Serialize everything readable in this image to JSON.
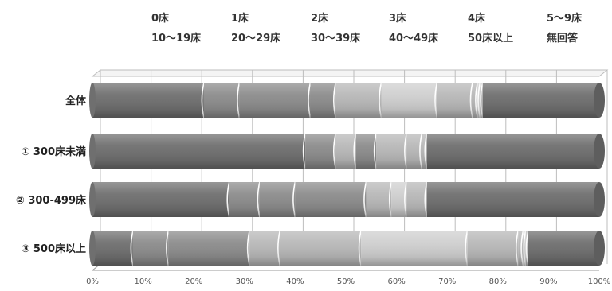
{
  "chart_data": {
    "type": "bar",
    "orientation": "horizontal",
    "stacked": true,
    "percent": true,
    "legend": {
      "row1": [
        "0床",
        "1床",
        "2床",
        "3床",
        "4床",
        "5～9床"
      ],
      "row2": [
        "10～19床",
        "20～29床",
        "30～39床",
        "40～49床",
        "50床以上",
        "無回答"
      ]
    },
    "categories": [
      "全体",
      "① 300床未満",
      "② 300-499床",
      "③ 500床以上"
    ],
    "series": [
      {
        "name": "0床",
        "values": [
          22,
          42,
          27,
          8
        ]
      },
      {
        "name": "1床",
        "values": [
          7,
          6,
          6,
          7
        ]
      },
      {
        "name": "2床",
        "values": [
          14,
          0,
          7,
          16
        ]
      },
      {
        "name": "3床",
        "values": [
          0,
          4,
          0,
          6
        ]
      },
      {
        "name": "4床",
        "values": [
          5,
          4,
          14,
          0
        ]
      },
      {
        "name": "5～9床",
        "values": [
          9,
          6,
          5,
          16
        ]
      },
      {
        "name": "10～19床",
        "values": [
          11,
          0,
          3,
          21
        ]
      },
      {
        "name": "20～29床",
        "values": [
          7,
          3,
          4,
          10
        ]
      },
      {
        "name": "30～39床",
        "values": [
          1,
          1,
          0,
          1
        ]
      },
      {
        "name": "40～49床",
        "values": [
          0.5,
          0,
          0,
          0.5
        ]
      },
      {
        "name": "50床以上",
        "values": [
          0.5,
          0,
          0,
          0.5
        ]
      },
      {
        "name": "無回答",
        "values": [
          23,
          34,
          34,
          14
        ]
      }
    ],
    "xticks": [
      "0%",
      "10%",
      "20%",
      "30%",
      "40%",
      "50%",
      "60%",
      "70%",
      "80%",
      "90%",
      "100%"
    ],
    "xlim": [
      0,
      100
    ],
    "grid": true,
    "legend_placement": "top",
    "colors": {
      "dark": "#6f6f6f",
      "mid": "#8c8c8c",
      "light": "#b8b8b8",
      "lighter": "#cfcfcf",
      "separator": "#ffffff",
      "grid": "#bdbdbd"
    }
  }
}
